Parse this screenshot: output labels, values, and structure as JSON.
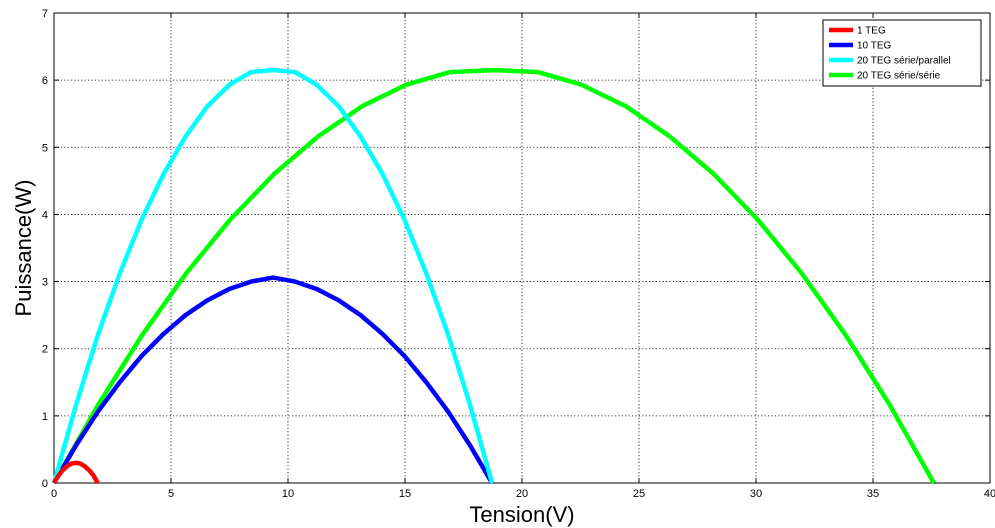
{
  "chart_data": {
    "type": "line",
    "title": "",
    "xlabel": "Tension(V)",
    "ylabel": "Puissance(W)",
    "xlim": [
      0,
      40
    ],
    "ylim": [
      0,
      7
    ],
    "xticks": [
      0,
      5,
      10,
      15,
      20,
      25,
      30,
      35,
      40
    ],
    "yticks": [
      0,
      1,
      2,
      3,
      4,
      5,
      6,
      7
    ],
    "grid": true,
    "legend_position": "top-right",
    "series": [
      {
        "name": "1 TEG",
        "color": "#ff0000",
        "x": [
          0,
          0.19,
          0.37,
          0.56,
          0.75,
          0.94,
          1.12,
          1.31,
          1.5,
          1.69,
          1.87
        ],
        "y": [
          0,
          0.11,
          0.19,
          0.25,
          0.29,
          0.3,
          0.29,
          0.25,
          0.19,
          0.11,
          0
        ]
      },
      {
        "name": "10 TEG",
        "color": "#0000ff",
        "x": [
          0,
          0.94,
          1.87,
          2.81,
          3.74,
          4.68,
          5.62,
          6.55,
          7.49,
          8.42,
          9.36,
          10.3,
          11.23,
          12.17,
          13.1,
          14.04,
          14.98,
          15.91,
          16.85,
          17.78,
          18.72
        ],
        "y": [
          0,
          0.56,
          1.06,
          1.5,
          1.89,
          2.22,
          2.5,
          2.72,
          2.89,
          3.0,
          3.06,
          3.0,
          2.89,
          2.72,
          2.5,
          2.22,
          1.89,
          1.5,
          1.06,
          0.56,
          0
        ]
      },
      {
        "name": "20 TEG série/parallel",
        "color": "#00ffff",
        "x": [
          0,
          0.94,
          1.87,
          2.81,
          3.74,
          4.68,
          5.62,
          6.55,
          7.49,
          8.42,
          9.36,
          10.3,
          11.23,
          12.17,
          13.1,
          14.04,
          14.98,
          15.91,
          16.85,
          17.78,
          18.72
        ],
        "y": [
          0,
          1.16,
          2.2,
          3.12,
          3.92,
          4.6,
          5.16,
          5.61,
          5.93,
          6.12,
          6.15,
          6.12,
          5.93,
          5.61,
          5.16,
          4.6,
          3.92,
          3.12,
          2.2,
          1.16,
          0
        ]
      },
      {
        "name": "20 TEG série/série",
        "color": "#00ff00",
        "x": [
          0,
          1.88,
          3.76,
          5.64,
          7.52,
          9.4,
          11.28,
          13.16,
          15.04,
          16.92,
          18.8,
          20.68,
          22.56,
          24.44,
          26.32,
          28.2,
          30.08,
          31.96,
          33.84,
          35.72,
          37.6
        ],
        "y": [
          0,
          1.16,
          2.2,
          3.12,
          3.92,
          4.6,
          5.16,
          5.61,
          5.93,
          6.12,
          6.15,
          6.12,
          5.93,
          5.61,
          5.16,
          4.6,
          3.92,
          3.12,
          2.2,
          1.16,
          0
        ]
      }
    ]
  }
}
